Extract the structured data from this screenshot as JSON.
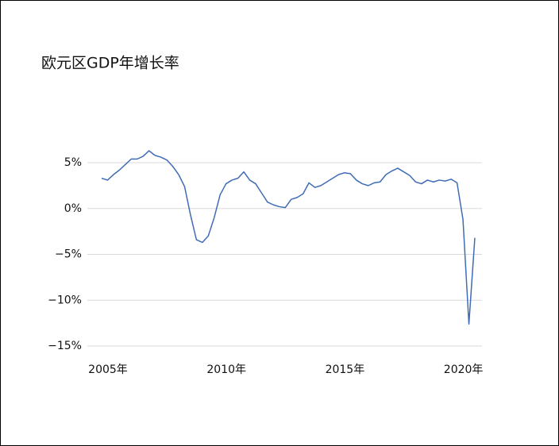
{
  "chart_data": {
    "type": "line",
    "title": "欧元区GDP年增长率",
    "x": [
      2005,
      2005.25,
      2005.5,
      2005.75,
      2006,
      2006.25,
      2006.5,
      2006.75,
      2007,
      2007.25,
      2007.5,
      2007.75,
      2008,
      2008.25,
      2008.5,
      2008.75,
      2009,
      2009.25,
      2009.5,
      2009.75,
      2010,
      2010.25,
      2010.5,
      2010.75,
      2011,
      2011.25,
      2011.5,
      2011.75,
      2012,
      2012.25,
      2012.5,
      2012.75,
      2013,
      2013.25,
      2013.5,
      2013.75,
      2014,
      2014.25,
      2014.5,
      2014.75,
      2015,
      2015.25,
      2015.5,
      2015.75,
      2016,
      2016.25,
      2016.5,
      2016.75,
      2017,
      2017.25,
      2017.5,
      2017.75,
      2018,
      2018.25,
      2018.5,
      2018.75,
      2019,
      2019.25,
      2019.5,
      2019.75,
      2020,
      2020.25,
      2020.5,
      2020.75
    ],
    "series": [
      {
        "name": "欧元区GDP年增长率",
        "color": "#3f6cb5",
        "values": [
          3.3,
          3.1,
          3.7,
          4.2,
          4.8,
          5.4,
          5.4,
          5.7,
          6.3,
          5.8,
          5.6,
          5.3,
          4.6,
          3.7,
          2.4,
          -0.7,
          -3.4,
          -3.7,
          -3.0,
          -1.0,
          1.5,
          2.7,
          3.1,
          3.3,
          4.0,
          3.1,
          2.7,
          1.7,
          0.7,
          0.4,
          0.2,
          0.1,
          1.0,
          1.2,
          1.6,
          2.8,
          2.3,
          2.5,
          2.9,
          3.3,
          3.7,
          3.9,
          3.8,
          3.1,
          2.7,
          2.5,
          2.8,
          2.9,
          3.7,
          4.1,
          4.4,
          4.0,
          3.6,
          2.9,
          2.7,
          3.1,
          2.9,
          3.1,
          3.0,
          3.2,
          2.8,
          -1.2,
          -12.6,
          -3.2
        ]
      }
    ],
    "xlim": [
      2005,
      2020.75
    ],
    "xticks": [
      {
        "value": 2005,
        "label": "2005年"
      },
      {
        "value": 2010,
        "label": "2010年"
      },
      {
        "value": 2015,
        "label": "2015年"
      },
      {
        "value": 2020,
        "label": "2020年"
      }
    ],
    "ylim": [
      -15,
      5
    ],
    "yticks": [
      {
        "value": -15,
        "label": "−15%"
      },
      {
        "value": -10,
        "label": "−10%"
      },
      {
        "value": -5,
        "label": "−5%"
      },
      {
        "value": 0,
        "label": "0%"
      },
      {
        "value": 5,
        "label": "5%"
      }
    ],
    "grid": true
  }
}
